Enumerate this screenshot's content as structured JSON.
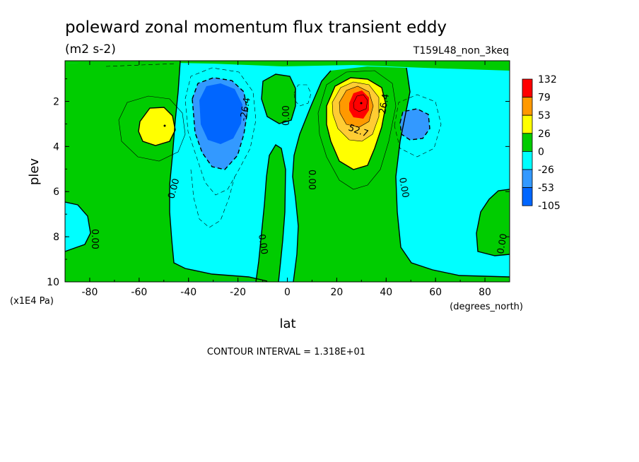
{
  "chart_data": {
    "type": "heatmap",
    "title": "poleward zonal momentum flux transient eddy",
    "units": "(m2 s-2)",
    "run_label": "T159L48_non_3keq",
    "xlabel": "lat",
    "xunits": "(degrees_north)",
    "ylabel": "plev",
    "yunits": "(x1E4 Pa)",
    "xlim": [
      -90,
      90
    ],
    "ylim": [
      10,
      0.2
    ],
    "y_reversed": true,
    "xticks": [
      "-80",
      "-60",
      "-40",
      "-20",
      "0",
      "20",
      "40",
      "60",
      "80"
    ],
    "xtick_values": [
      -80,
      -60,
      -40,
      -20,
      0,
      20,
      40,
      60,
      80
    ],
    "yticks": [
      "2",
      "4",
      "6",
      "8",
      "10"
    ],
    "ytick_values": [
      2,
      4,
      6,
      8,
      10
    ],
    "colorbar": {
      "labels": [
        "132",
        "79",
        "53",
        "26",
        "0",
        "-26",
        "-53",
        "-105"
      ],
      "colors": [
        "#ff0000",
        "#ff9900",
        "#ffff00",
        "#00cc00",
        "#00ffff",
        "#3399ff",
        "#0066ff"
      ]
    },
    "contour_labels": [
      "0.00",
      "0.00",
      "0.00",
      "0.00",
      "0.00",
      "0.00",
      "0.00",
      "-26.4",
      "26.4",
      "52.7"
    ],
    "features": [
      {
        "kind": "max",
        "lat": 30,
        "plev": 2.0,
        "value": 132
      },
      {
        "kind": "min",
        "lat": -28,
        "plev": 2.6,
        "value": -105
      },
      {
        "kind": "max",
        "lat": -50,
        "plev": 3.0,
        "value": 40
      },
      {
        "kind": "min",
        "lat": 52,
        "plev": 2.8,
        "value": -40
      }
    ],
    "contour_interval_text": "CONTOUR INTERVAL = 1.318E+01"
  },
  "icons": {}
}
